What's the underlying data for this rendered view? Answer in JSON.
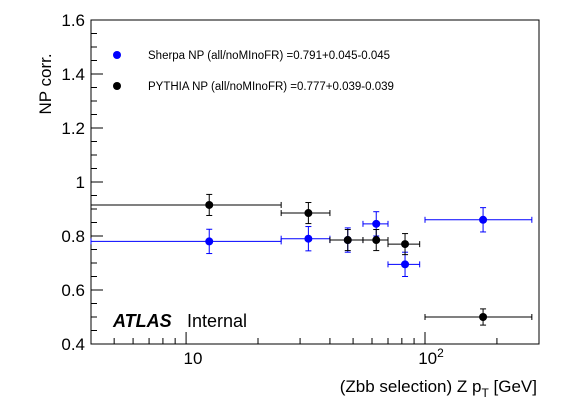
{
  "chart_data": {
    "type": "scatter",
    "xlabel": "(Zbb selection) Z p",
    "xlabel_sub": "T",
    "xlabel_unit": " [GeV]",
    "ylabel": "NP corr.",
    "xscale": "log",
    "xlim": [
      4,
      300
    ],
    "ylim": [
      0.4,
      1.6
    ],
    "y_ticks": [
      "0.4",
      "0.6",
      "0.8",
      "1",
      "1.2",
      "1.4",
      "1.6"
    ],
    "x_tick_labels": {
      "ten": "10",
      "hundred_base": "10",
      "hundred_exp": "2"
    },
    "legend_position": "top-left",
    "series": [
      {
        "name": "Sherpa NP (all/noMInoFR) =0.791+0.045-0.045",
        "color": "#0000ff",
        "points": [
          {
            "x": 12.5,
            "xlo": 4,
            "xhi": 25,
            "y": 0.78,
            "yerr": 0.045
          },
          {
            "x": 32.5,
            "xlo": 25,
            "xhi": 40,
            "y": 0.79,
            "yerr": 0.045
          },
          {
            "x": 47.5,
            "xlo": 40,
            "xhi": 55,
            "y": 0.785,
            "yerr": 0.045
          },
          {
            "x": 62.5,
            "xlo": 55,
            "xhi": 70,
            "y": 0.845,
            "yerr": 0.045
          },
          {
            "x": 82.5,
            "xlo": 70,
            "xhi": 95,
            "y": 0.695,
            "yerr": 0.045
          },
          {
            "x": 175,
            "xlo": 100,
            "xhi": 280,
            "y": 0.86,
            "yerr": 0.045
          }
        ]
      },
      {
        "name": "PYTHIA NP (all/noMInoFR) =0.777+0.039-0.039",
        "color": "#000000",
        "points": [
          {
            "x": 12.5,
            "xlo": 4,
            "xhi": 25,
            "y": 0.915,
            "yerr": 0.039
          },
          {
            "x": 32.5,
            "xlo": 25,
            "xhi": 40,
            "y": 0.885,
            "yerr": 0.039
          },
          {
            "x": 47.5,
            "xlo": 40,
            "xhi": 55,
            "y": 0.785,
            "yerr": 0.039
          },
          {
            "x": 62.5,
            "xlo": 55,
            "xhi": 70,
            "y": 0.785,
            "yerr": 0.039
          },
          {
            "x": 82.5,
            "xlo": 70,
            "xhi": 95,
            "y": 0.77,
            "yerr": 0.039
          },
          {
            "x": 175,
            "xlo": 100,
            "xhi": 280,
            "y": 0.5,
            "yerr": 0.03
          }
        ]
      }
    ]
  },
  "label": {
    "atlas": "ATLAS",
    "status": "Internal"
  }
}
